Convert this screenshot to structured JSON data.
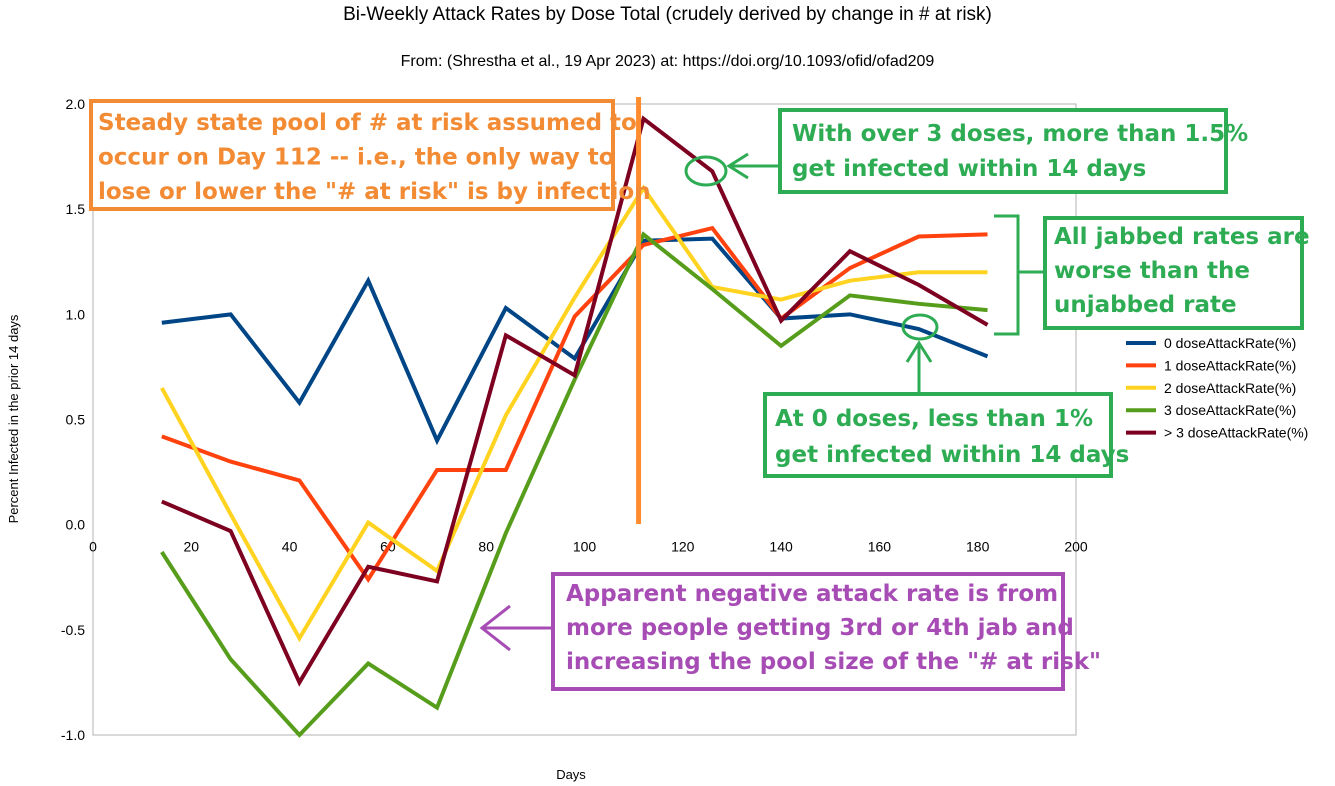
{
  "chart_data": {
    "type": "line",
    "title": "Bi-Weekly Attack Rates by Dose Total (crudely derived by change in # at risk)",
    "subtitle": "From: (Shrestha et al., 19 Apr 2023) at: https://doi.org/10.1093/ofid/ofad209",
    "xlabel": "Days",
    "ylabel": "Percent Infected in the prior 14 days",
    "xlim": [
      0,
      200
    ],
    "ylim": [
      -1.0,
      2.0
    ],
    "x_ticks": [
      "0",
      "20",
      "40",
      "60",
      "80",
      "100",
      "120",
      "140",
      "160",
      "180",
      "200"
    ],
    "y_ticks": [
      "2.0",
      "1.5",
      "1.0",
      "0.5",
      "0.0",
      "-0.5",
      "-1.0"
    ],
    "grid": false,
    "legend_position": "right",
    "x": [
      14,
      28,
      42,
      56,
      70,
      84,
      98,
      112,
      126,
      140,
      154,
      168,
      182
    ],
    "series": [
      {
        "name": "0 doseAttackRate(%)",
        "color": "#004586",
        "values": [
          0.96,
          1.0,
          0.58,
          1.16,
          0.4,
          1.03,
          0.79,
          1.35,
          1.36,
          0.98,
          1.0,
          0.93,
          0.8
        ]
      },
      {
        "name": "1 doseAttackRate(%)",
        "color": "#ff420e",
        "values": [
          0.42,
          0.3,
          0.21,
          -0.26,
          0.26,
          0.26,
          0.99,
          1.33,
          1.41,
          0.98,
          1.22,
          1.37,
          1.38
        ]
      },
      {
        "name": "2 doseAttackRate(%)",
        "color": "#ffd320",
        "values": [
          0.65,
          0.05,
          -0.54,
          0.01,
          -0.22,
          0.52,
          1.08,
          1.6,
          1.13,
          1.07,
          1.16,
          1.2,
          1.2
        ]
      },
      {
        "name": "3 doseAttackRate(%)",
        "color": "#579d1c",
        "values": [
          -0.13,
          -0.64,
          -1.0,
          -0.66,
          -0.87,
          -0.04,
          0.69,
          1.38,
          1.12,
          0.85,
          1.09,
          1.05,
          1.02
        ]
      },
      {
        "name": "> 3 doseAttackRate(%)",
        "color": "#7e0021",
        "values": [
          0.11,
          -0.03,
          -0.75,
          -0.2,
          -0.27,
          0.9,
          0.71,
          1.93,
          1.68,
          0.97,
          1.3,
          1.14,
          0.95
        ]
      }
    ],
    "vertical_line": {
      "x": 111,
      "color": "#ff8c2e"
    },
    "annotations": [
      {
        "id": "steady",
        "color": "#f28b33",
        "lines": [
          "Steady state pool of # at risk assumed to",
          "occur on Day 112 -- i.e., the only way to",
          "lose or lower the \"# at risk\" is by infection"
        ]
      },
      {
        "id": "over3",
        "color": "#2eac54",
        "lines": [
          "With over 3 doses, more than 1.5%",
          "get infected within 14 days"
        ]
      },
      {
        "id": "jabbed",
        "color": "#2eac54",
        "lines": [
          "All jabbed rates are",
          "worse than the",
          "unjabbed rate"
        ]
      },
      {
        "id": "zero",
        "color": "#2eac54",
        "lines": [
          "At 0 doses, less than 1%",
          "get infected within 14 days"
        ]
      },
      {
        "id": "negative",
        "color": "#a64cb4",
        "lines": [
          "Apparent negative attack rate is from",
          "more people getting 3rd or 4th jab and",
          "increasing the pool size of the \"# at risk\""
        ]
      }
    ]
  }
}
